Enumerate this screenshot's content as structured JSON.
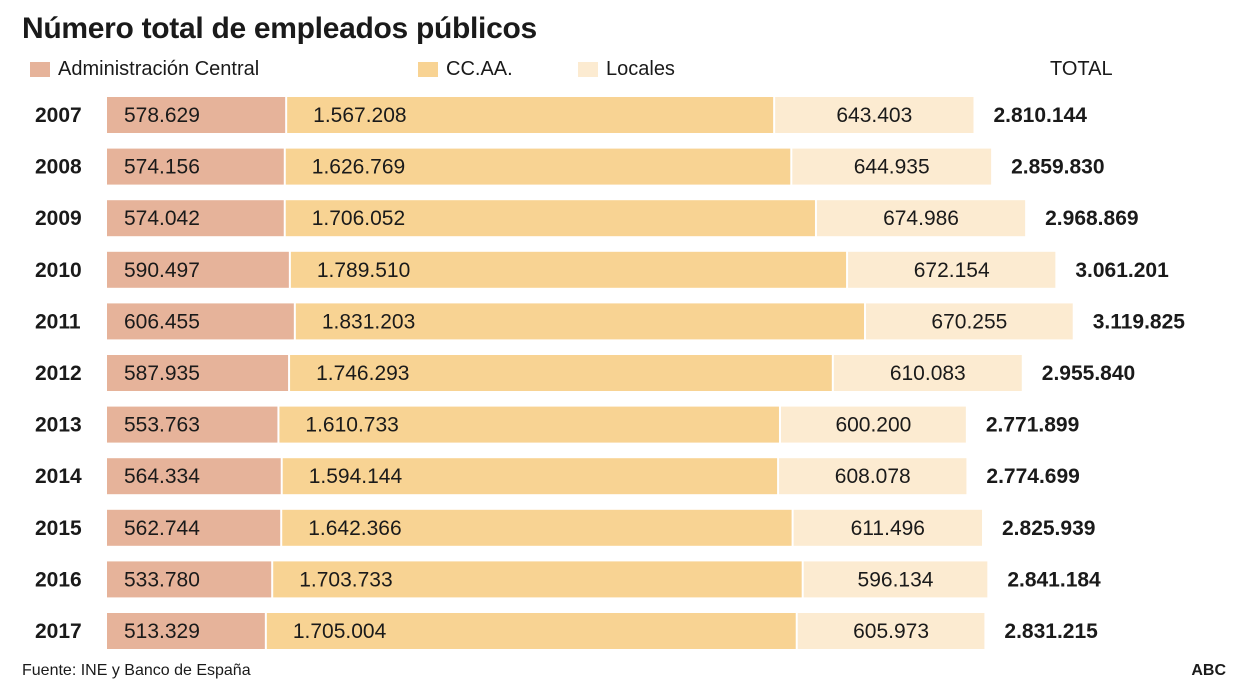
{
  "chart_data": {
    "type": "bar",
    "orientation": "horizontal",
    "stacked": true,
    "title": "Número total de empleados públicos",
    "xlabel": "",
    "ylabel": "",
    "legend_placement": "top",
    "grid": false,
    "total_header": "TOTAL",
    "categories": [
      "2007",
      "2008",
      "2009",
      "2010",
      "2011",
      "2012",
      "2013",
      "2014",
      "2015",
      "2016",
      "2017"
    ],
    "series": [
      {
        "name": "Administración Central",
        "color": "#e6b39a",
        "values": [
          578629,
          574156,
          574042,
          590497,
          606455,
          587935,
          553763,
          564334,
          562744,
          533780,
          513329
        ],
        "labels": [
          "578.629",
          "574.156",
          "574.042",
          "590.497",
          "606.455",
          "587.935",
          "553.763",
          "564.334",
          "562.744",
          "533.780",
          "513.329"
        ]
      },
      {
        "name": "CC.AA.",
        "color": "#f8d393",
        "values": [
          1567208,
          1626769,
          1706052,
          1789510,
          1831203,
          1746293,
          1610733,
          1594144,
          1642366,
          1703733,
          1705004
        ],
        "labels": [
          "1.567.208",
          "1.626.769",
          "1.706.052",
          "1.789.510",
          "1.831.203",
          "1.746.293",
          "1.610.733",
          "1.594.144",
          "1.642.366",
          "1.703.733",
          "1.705.004"
        ]
      },
      {
        "name": "Locales",
        "color": "#fcebd1",
        "values": [
          643403,
          644935,
          674986,
          672154,
          670255,
          610083,
          600200,
          608078,
          611496,
          596134,
          605973
        ],
        "labels": [
          "643.403",
          "644.935",
          "674.986",
          "672.154",
          "670.255",
          "610.083",
          "600.200",
          "608.078",
          "611.496",
          "596.134",
          "605.973"
        ]
      }
    ],
    "totals": [
      2810144,
      2859830,
      2968869,
      3061201,
      3119825,
      2955840,
      2771899,
      2774699,
      2825939,
      2841184,
      2831215
    ],
    "total_labels": [
      "2.810.144",
      "2.859.830",
      "2.968.869",
      "3.061.201",
      "3.119.825",
      "2.955.840",
      "2.771.899",
      "2.774.699",
      "2.825.939",
      "2.841.184",
      "2.831.215"
    ]
  },
  "footer": {
    "source": "Fuente: INE y Banco de España",
    "brand": "ABC"
  }
}
